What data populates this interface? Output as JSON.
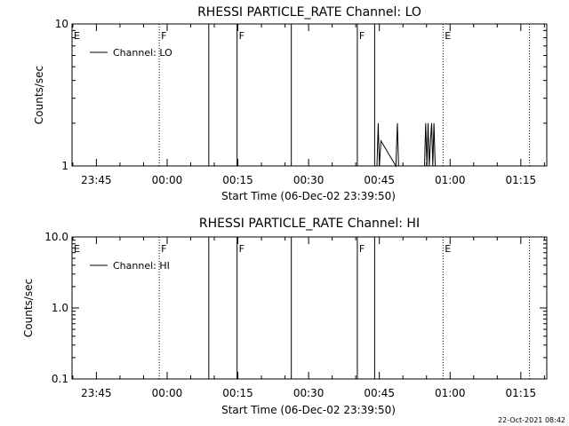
{
  "footer": {
    "timestamp": "22-Oct-2021 08:42"
  },
  "chart_data": [
    {
      "type": "line",
      "title": "RHESSI PARTICLE_RATE Channel: LO",
      "xlabel": "Start Time (06-Dec-02 23:39:50)",
      "ylabel": "Counts/sec",
      "yscale": "log",
      "ylim": [
        1,
        10
      ],
      "yticks": [
        {
          "value": 1,
          "label": "1"
        },
        {
          "value": 10,
          "label": "10"
        }
      ],
      "xlim": [
        "23:39:50",
        "01:20:30"
      ],
      "xticks": [
        "23:45",
        "00:00",
        "00:15",
        "00:30",
        "00:45",
        "01:00",
        "01:15"
      ],
      "legend": {
        "position": "top-left",
        "entries": [
          "Channel: LO"
        ]
      },
      "flag_markers": [
        {
          "time": "23:39:50",
          "label": "E",
          "style": "none"
        },
        {
          "time": "23:58:20",
          "label": "F",
          "style": "dotted"
        },
        {
          "time": "00:14:50",
          "label": "F",
          "style": "solid"
        },
        {
          "time": "00:40:20",
          "label": "F",
          "style": "solid"
        },
        {
          "time": "00:58:30",
          "label": "E",
          "style": "dotted"
        }
      ],
      "event_lines": [
        {
          "time": "00:08:50",
          "style": "solid"
        },
        {
          "time": "00:26:20",
          "style": "solid"
        },
        {
          "time": "00:44:00",
          "style": "solid"
        },
        {
          "time": "01:16:50",
          "style": "dotted"
        }
      ],
      "series": [
        {
          "name": "Channel: LO",
          "x": [
            "00:44:30",
            "00:44:45",
            "00:45:00",
            "00:45:20",
            "00:48:30",
            "00:48:50",
            "00:49:05",
            "00:54:35",
            "00:54:50",
            "00:55:05",
            "00:55:20",
            "00:55:35",
            "00:55:50",
            "00:56:05",
            "00:56:20",
            "00:56:35",
            "00:56:50"
          ],
          "values": [
            1,
            2,
            1,
            1.5,
            1,
            2,
            1,
            1,
            2,
            1,
            2,
            1,
            1.5,
            2,
            1,
            2,
            1
          ]
        }
      ]
    },
    {
      "type": "line",
      "title": "RHESSI PARTICLE_RATE Channel: HI",
      "xlabel": "Start Time (06-Dec-02 23:39:50)",
      "ylabel": "Counts/sec",
      "yscale": "log",
      "ylim": [
        0.1,
        10
      ],
      "yticks": [
        {
          "value": 0.1,
          "label": "0.1"
        },
        {
          "value": 1,
          "label": "1.0"
        },
        {
          "value": 10,
          "label": "10.0"
        }
      ],
      "xlim": [
        "23:39:50",
        "01:20:30"
      ],
      "xticks": [
        "23:45",
        "00:00",
        "00:15",
        "00:30",
        "00:45",
        "01:00",
        "01:15"
      ],
      "legend": {
        "position": "top-left",
        "entries": [
          "Channel: HI"
        ]
      },
      "flag_markers": [
        {
          "time": "23:39:50",
          "label": "E",
          "style": "none"
        },
        {
          "time": "23:58:20",
          "label": "F",
          "style": "dotted"
        },
        {
          "time": "00:14:50",
          "label": "F",
          "style": "solid"
        },
        {
          "time": "00:40:20",
          "label": "F",
          "style": "solid"
        },
        {
          "time": "00:58:30",
          "label": "E",
          "style": "dotted"
        }
      ],
      "event_lines": [
        {
          "time": "00:08:50",
          "style": "solid"
        },
        {
          "time": "00:26:20",
          "style": "solid"
        },
        {
          "time": "00:44:00",
          "style": "solid"
        },
        {
          "time": "01:16:50",
          "style": "dotted"
        }
      ],
      "series": [
        {
          "name": "Channel: HI",
          "x": [],
          "values": []
        }
      ]
    }
  ]
}
